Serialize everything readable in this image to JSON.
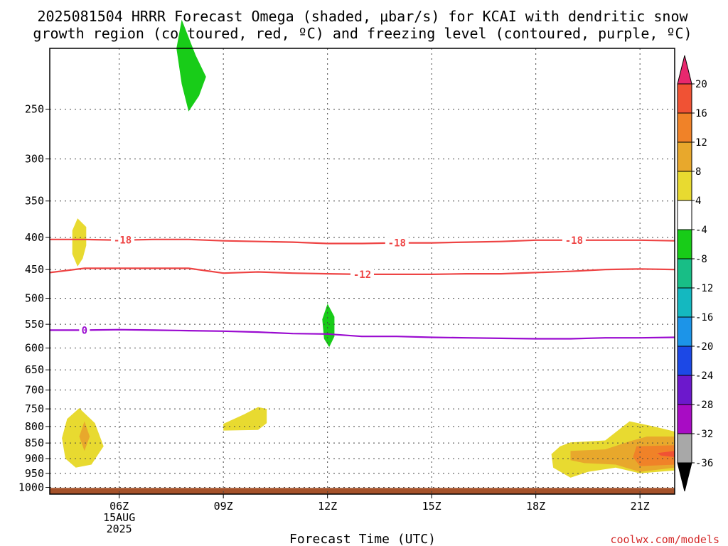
{
  "chart_data": {
    "type": "heatmap",
    "title_lines": [
      "2025081504 HRRR Forecast Omega (shaded, μbar/s) for KCAI with dendritic snow",
      "growth region (contoured, red, ºC) and freezing level (contoured, purple, ºC)"
    ],
    "xlabel": "Forecast Time (UTC)",
    "credit": "coolwx.com/models",
    "x_ticks": [
      {
        "hour": 6,
        "label": "06Z",
        "sub": [
          "15AUG",
          "2025"
        ]
      },
      {
        "hour": 9,
        "label": "09Z",
        "sub": []
      },
      {
        "hour": 12,
        "label": "12Z",
        "sub": []
      },
      {
        "hour": 15,
        "label": "15Z",
        "sub": []
      },
      {
        "hour": 18,
        "label": "18Z",
        "sub": []
      },
      {
        "hour": 21,
        "label": "21Z",
        "sub": []
      }
    ],
    "xlim": [
      4,
      22
    ],
    "y_ticks": [
      250,
      300,
      350,
      400,
      450,
      500,
      550,
      600,
      650,
      700,
      750,
      800,
      850,
      900,
      950,
      1000
    ],
    "ylim": [
      200,
      1025
    ],
    "y_scale": "log-pressure",
    "colorbar": {
      "labels": [
        "20",
        "16",
        "12",
        "8",
        "4",
        "-4",
        "-8",
        "-12",
        "-16",
        "-20",
        "-24",
        "-28",
        "-32",
        "-36"
      ],
      "colors": [
        "#e8286e",
        "#f05234",
        "#f08228",
        "#e8a82c",
        "#e8da30",
        "#ffffff",
        "#18cc18",
        "#18be86",
        "#14b8c0",
        "#1c94e8",
        "#1c48e6",
        "#6c18cc",
        "#a80cc4",
        "#a8a8a8",
        "#000000"
      ]
    },
    "series": [
      {
        "name": "-18",
        "kind": "dgz",
        "color": "#ee4444",
        "x": [
          4,
          5,
          6,
          7,
          8,
          9,
          10,
          11,
          12,
          13,
          14,
          15,
          16,
          17,
          18,
          19,
          20,
          21,
          22
        ],
        "y": [
          403,
          403,
          404,
          403,
          403,
          405,
          406,
          407,
          409,
          409,
          408,
          408,
          407,
          406,
          404,
          404,
          404,
          404,
          405
        ],
        "labels_at": [
          6.1,
          14.0,
          19.1
        ]
      },
      {
        "name": "-12",
        "kind": "dgz",
        "color": "#ee4444",
        "x": [
          4,
          5,
          6,
          7,
          8,
          9,
          10,
          11,
          12,
          13,
          14,
          15,
          16,
          17,
          18,
          19,
          20,
          21,
          22
        ],
        "y": [
          455,
          448,
          448,
          448,
          448,
          456,
          454,
          456,
          457,
          458,
          458,
          458,
          457,
          457,
          455,
          453,
          450,
          449,
          450
        ],
        "labels_at": [
          13.0
        ]
      },
      {
        "name": "0",
        "kind": "freezing",
        "color": "#9a0ad0",
        "x": [
          4,
          5,
          6,
          7,
          8,
          9,
          10,
          11,
          12,
          13,
          14,
          15,
          16,
          17,
          18,
          19,
          20,
          21,
          22
        ],
        "y": [
          562,
          562,
          561,
          562,
          563,
          564,
          566,
          569,
          570,
          575,
          575,
          577,
          578,
          579,
          580,
          580,
          578,
          578,
          577
        ],
        "labels_at": [
          5.0
        ]
      }
    ],
    "omega_regions": [
      {
        "value": -6,
        "color": "#18cc18",
        "pts": [
          [
            7.8,
            180
          ],
          [
            8.2,
            205
          ],
          [
            8.5,
            222
          ],
          [
            8.3,
            238
          ],
          [
            8.0,
            252
          ],
          [
            7.8,
            228
          ],
          [
            7.65,
            200
          ]
        ]
      },
      {
        "value": 6,
        "color": "#e8da30",
        "pts": [
          [
            4.8,
            373
          ],
          [
            5.05,
            385
          ],
          [
            5.05,
            412
          ],
          [
            4.95,
            432
          ],
          [
            4.8,
            445
          ],
          [
            4.65,
            425
          ],
          [
            4.65,
            390
          ]
        ]
      },
      {
        "value": -6,
        "color": "#18cc18",
        "pts": [
          [
            12.0,
            510
          ],
          [
            12.2,
            535
          ],
          [
            12.2,
            575
          ],
          [
            12.05,
            598
          ],
          [
            11.9,
            580
          ],
          [
            11.85,
            540
          ]
        ]
      },
      {
        "value": 6,
        "color": "#e8da30",
        "pts": [
          [
            4.85,
            748
          ],
          [
            5.3,
            790
          ],
          [
            5.55,
            860
          ],
          [
            5.2,
            920
          ],
          [
            4.75,
            930
          ],
          [
            4.45,
            900
          ],
          [
            4.35,
            835
          ],
          [
            4.5,
            778
          ]
        ]
      },
      {
        "value": 10,
        "color": "#e8a82c",
        "pts": [
          [
            5.0,
            785
          ],
          [
            5.15,
            830
          ],
          [
            5.0,
            875
          ],
          [
            4.85,
            830
          ]
        ]
      },
      {
        "value": 6,
        "color": "#e8da30",
        "pts": [
          [
            9.0,
            792
          ],
          [
            9.6,
            765
          ],
          [
            10.0,
            745
          ],
          [
            10.25,
            750
          ],
          [
            10.25,
            790
          ],
          [
            10.0,
            810
          ],
          [
            9.0,
            812
          ]
        ]
      },
      {
        "value": 6,
        "color": "#e8da30",
        "pts": [
          [
            18.7,
            860
          ],
          [
            19.0,
            848
          ],
          [
            20.0,
            842
          ],
          [
            20.7,
            785
          ],
          [
            21.4,
            800
          ],
          [
            22,
            815
          ],
          [
            22,
            940
          ],
          [
            21.0,
            950
          ],
          [
            20.3,
            930
          ],
          [
            19.5,
            945
          ],
          [
            19.0,
            965
          ],
          [
            18.5,
            930
          ],
          [
            18.45,
            885
          ]
        ]
      },
      {
        "value": 10,
        "color": "#e8a82c",
        "pts": [
          [
            19.0,
            875
          ],
          [
            20.0,
            870
          ],
          [
            20.7,
            845
          ],
          [
            21.2,
            830
          ],
          [
            22,
            830
          ],
          [
            22,
            930
          ],
          [
            21.0,
            945
          ],
          [
            20.3,
            920
          ],
          [
            19.4,
            915
          ],
          [
            19.0,
            905
          ]
        ]
      },
      {
        "value": 14,
        "color": "#f08228",
        "pts": [
          [
            20.9,
            860
          ],
          [
            22,
            857
          ],
          [
            22,
            920
          ],
          [
            21.0,
            925
          ],
          [
            20.8,
            895
          ]
        ]
      },
      {
        "value": 18,
        "color": "#f05234",
        "pts": [
          [
            21.5,
            882
          ],
          [
            22,
            875
          ],
          [
            22,
            895
          ],
          [
            21.6,
            890
          ]
        ]
      }
    ],
    "terrain": {
      "color": "#a5522a",
      "top_pressure": 1002
    }
  }
}
